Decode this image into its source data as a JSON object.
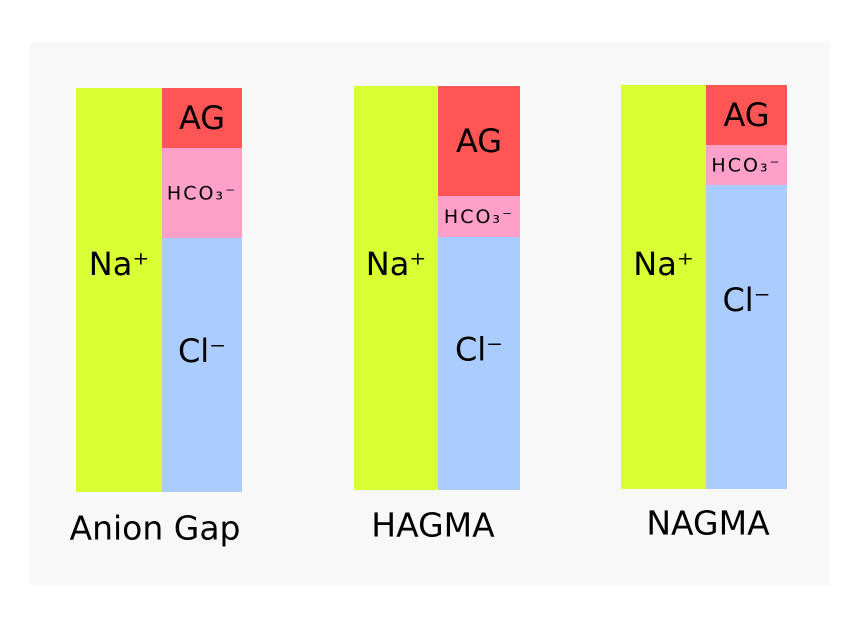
{
  "panels": [
    {
      "title": "Anion Gap",
      "na": "Na⁺",
      "ag": "AG",
      "hco3": "HCO₃⁻",
      "cl": "Cl⁻"
    },
    {
      "title": "HAGMA",
      "na": "Na⁺",
      "ag": "AG",
      "hco3": "HCO₃⁻",
      "cl": "Cl⁻"
    },
    {
      "title": "NAGMA",
      "na": "Na⁺",
      "ag": "AG",
      "hco3": "HCO₃⁻",
      "cl": "Cl⁻"
    }
  ]
}
